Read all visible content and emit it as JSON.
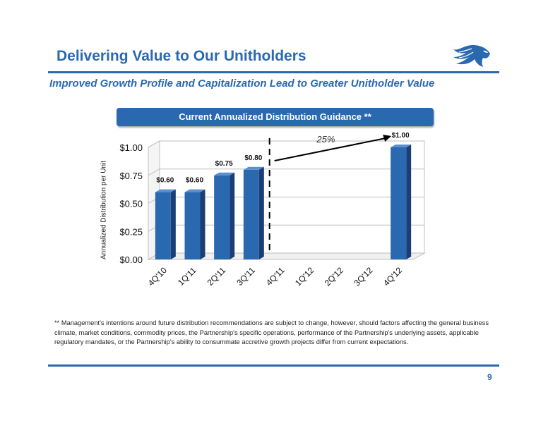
{
  "header": {
    "title": "Delivering Value to Our Unitholders",
    "subtitle": "Improved Growth Profile and Capitalization Lead to Greater Unitholder Value"
  },
  "banner": {
    "text": "Current Annualized Distribution Guidance **"
  },
  "chart_data": {
    "type": "bar",
    "title": "",
    "ylabel": "Annualized Distribution per Unit",
    "xlabel": "",
    "categories": [
      "4Q'10",
      "1Q'11",
      "2Q'11",
      "3Q'11",
      "4Q'11",
      "1Q'12",
      "2Q'12",
      "3Q'12",
      "4Q'12"
    ],
    "values": [
      0.6,
      0.6,
      0.75,
      0.8,
      null,
      null,
      null,
      null,
      1.0
    ],
    "value_labels": [
      "$0.60",
      "$0.60",
      "$0.75",
      "$0.80",
      "",
      "",
      "",
      "",
      "$1.00"
    ],
    "ylim": [
      0,
      1.0
    ],
    "yticks": [
      "$0.00",
      "$0.25",
      "$0.50",
      "$0.75",
      "$1.00"
    ],
    "ytick_values": [
      0,
      0.25,
      0.5,
      0.75,
      1.0
    ],
    "bar_color": "#2a68b0",
    "annotation": {
      "text": "25%",
      "from": "3Q'11",
      "to": "4Q'12"
    },
    "divider_after": "3Q'11",
    "grid": true
  },
  "footnote": "**  Management's intentions around future distribution recommendations are subject to change, however, should factors affecting the general business climate, market conditions, commodity prices, the Partnership's specific operations, performance of the Partnership's underlying assets, applicable regulatory mandates, or the Partnership's ability to consummate accretive growth projects differ from current expectations.",
  "page_number": "9",
  "logo": {
    "icon": "eagle-head-icon",
    "color": "#2a68b0"
  }
}
